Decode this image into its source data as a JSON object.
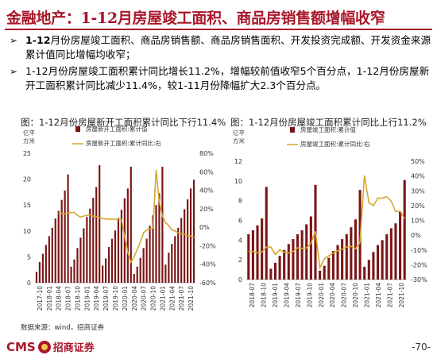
{
  "header": {
    "title": "金融地产：1-12月房屋竣工面积、商品房销售额增幅收窄"
  },
  "bullets": [
    {
      "lead": "1-12",
      "text": "月份房屋竣工面积、商品房销售额、商品房销售面积、开发投资完成额、开发资金来源累计值同比增幅均收窄；"
    },
    {
      "lead": "",
      "text": "1-12月份房屋竣工面积累计同比增长11.2%，增幅较前值收窄5个百分点，1-12月份房屋新开工面积累计同比减少11.4%，较1-11月份降幅扩大2.3个百分点。"
    }
  ],
  "source": "数据来源：wind，招商证券",
  "footer": {
    "brand": "CMS",
    "brand_cn": "招商证券",
    "page": "-70-"
  },
  "chart_data": [
    {
      "type": "bar",
      "title": "图：1-12月份房屋新开工面积累计同比下行11.4%",
      "ylabel_left": "亿平\n方米",
      "legend": [
        {
          "name": "房屋新开工面积:累计值",
          "color": "#7b1515"
        },
        {
          "name": "房屋新开工面积:累计同比:右",
          "color": "#d9a62e"
        }
      ],
      "x_ticks": [
        "2017-10",
        "2018-01",
        "2018-04",
        "2018-07",
        "2018-10",
        "2019-01",
        "2019-04",
        "2019-07",
        "2019-10",
        "2020-01",
        "2020-04",
        "2020-07",
        "2020-10",
        "2021-01",
        "2021-04",
        "2021-07",
        "2021-10"
      ],
      "ylim_left": [
        0,
        25
      ],
      "yticks_left": [
        0,
        5,
        10,
        15,
        20,
        25
      ],
      "ylim_right": [
        -60,
        80
      ],
      "yticks_right": [
        "-60%",
        "-40%",
        "-20%",
        "0%",
        "20%",
        "40%",
        "60%",
        "80%"
      ],
      "series": [
        {
          "name": "房屋新开工面积:累计值",
          "axis": "left",
          "values": [
            2.1,
            4.0,
            5.6,
            7.3,
            9.0,
            10.6,
            12.4,
            13.9,
            16.0,
            17.8,
            20.9,
            3.1,
            4.5,
            6.7,
            8.7,
            10.5,
            12.7,
            14.3,
            16.4,
            18.5,
            22.7,
            3.3,
            4.7,
            6.9,
            8.5,
            10.1,
            12.5,
            14.1,
            16.3,
            18.2,
            22.4,
            1.7,
            3.1,
            4.8,
            6.7,
            8.5,
            11.0,
            13.0,
            15.0,
            17.3,
            22.4,
            3.5,
            5.8,
            7.5,
            9.0,
            10.6,
            12.5,
            14.2,
            16.1,
            18.2,
            19.9
          ]
        },
        {
          "name": "房屋新开工面积:累计同比:右",
          "axis": "right",
          "values": [
            15.5,
            15.0,
            14.5,
            15.0,
            16.0,
            16.0,
            13.0,
            11.0,
            12.0,
            13.0,
            13.5,
            12.0,
            11.5,
            10.5,
            9.5,
            9.0,
            8.6,
            8.8,
            8.7,
            8.6,
            8.5,
            -10.0,
            -27.0,
            -38.0,
            -32.0,
            -24.0,
            -16.0,
            -6.0,
            -3.0,
            -2.0,
            -1.0,
            62.0,
            28.0,
            12.0,
            5.0,
            2.0,
            -3.0,
            -4.0,
            -6.0,
            -7.0,
            -7.5,
            -9.0,
            -9.5,
            -11.4
          ]
        }
      ]
    },
    {
      "type": "bar",
      "title": "图：1-12月份房屋竣工面积累计同比上行11.2%",
      "ylabel_left": "亿平\n方米",
      "legend": [
        {
          "name": "房屋竣工面积:累计值",
          "color": "#7b1515"
        },
        {
          "name": "房屋竣工面积:累计同比:右",
          "color": "#d9a62e"
        }
      ],
      "x_ticks": [
        "2018-07",
        "2018-10",
        "2019-01",
        "2019-04",
        "2019-07",
        "2019-10",
        "2020-01",
        "2020-04",
        "2020-07",
        "2020-10",
        "2021-01",
        "2021-04",
        "2021-07",
        "2021-10"
      ],
      "ylim_left": [
        0,
        12
      ],
      "yticks_left": [
        0,
        2,
        4,
        6,
        8,
        10,
        12
      ],
      "ylim_right": [
        -30,
        50
      ],
      "yticks_right": [
        "-30%",
        "-20%",
        "-10%",
        "0%",
        "10%",
        "20%",
        "30%",
        "40%",
        "50%"
      ],
      "series": [
        {
          "name": "房屋竣工面积:累计值",
          "axis": "left",
          "values": [
            4.6,
            5.0,
            5.5,
            6.2,
            9.4,
            1.1,
            1.7,
            2.4,
            3.0,
            3.6,
            4.1,
            4.6,
            5.0,
            5.6,
            6.4,
            9.6,
            0.9,
            1.4,
            2.2,
            2.9,
            3.5,
            4.1,
            4.6,
            5.3,
            6.1,
            9.1,
            1.3,
            2.0,
            2.8,
            3.5,
            4.0,
            4.6,
            5.2,
            5.7,
            6.9,
            10.1
          ]
        },
        {
          "name": "房屋竣工面积:累计同比:右",
          "axis": "right",
          "values": [
            -11.0,
            -11.0,
            -12.0,
            -11.5,
            -8.0,
            -8.0,
            -13.0,
            -10.0,
            -11.5,
            -12.0,
            -11.0,
            -8.5,
            -9.0,
            -8.6,
            -5.5,
            2.6,
            -22.0,
            -16.0,
            -14.0,
            -12.0,
            -10.5,
            -9.5,
            -8.0,
            -7.5,
            -9.2,
            -4.9,
            40.4,
            22.0,
            20.0,
            25.0,
            25.0,
            26.0,
            23.0,
            16.0,
            16.2,
            11.2
          ]
        }
      ]
    }
  ]
}
